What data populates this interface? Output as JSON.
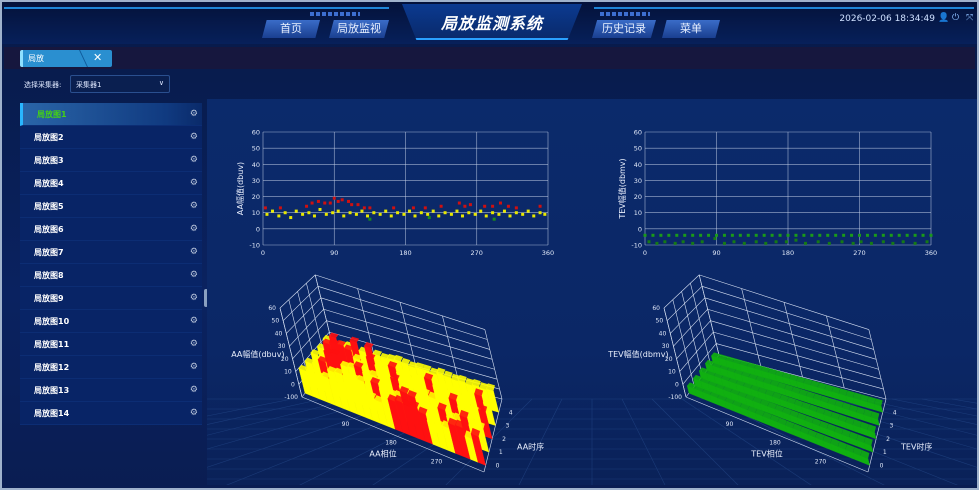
{
  "header": {
    "title": "局放监测系统",
    "nav": [
      "首页",
      "局放监视",
      "历史记录",
      "菜单"
    ],
    "datetime": "2026-02-06 18:34:49",
    "icons": [
      "user-icon",
      "power-icon",
      "fullscreen-icon"
    ]
  },
  "tabs": [
    {
      "label": "局放",
      "close": "✕"
    }
  ],
  "selector": {
    "label": "选择采集器:",
    "value": "采集器1"
  },
  "sidebar": {
    "items": [
      "局放图1",
      "局放图2",
      "局放图3",
      "局放图4",
      "局放图5",
      "局放图6",
      "局放图7",
      "局放图8",
      "局放图9",
      "局放图10",
      "局放图11",
      "局放图12",
      "局放图13",
      "局放图14"
    ],
    "active": 0
  },
  "chart_data": [
    {
      "type": "scatter",
      "ylabel": "AA幅值(dbuv)",
      "xlim": [
        0,
        360
      ],
      "ylim": [
        -10,
        60
      ],
      "xticks": [
        0,
        90,
        180,
        270,
        360
      ],
      "yticks": [
        -10,
        0,
        10,
        20,
        30,
        40,
        50,
        60
      ],
      "grid": true,
      "series": [
        {
          "color": "#e8e800",
          "points": [
            [
              5,
              9
            ],
            [
              12,
              11
            ],
            [
              20,
              8
            ],
            [
              28,
              10
            ],
            [
              35,
              7
            ],
            [
              42,
              11
            ],
            [
              50,
              9
            ],
            [
              58,
              10
            ],
            [
              65,
              8
            ],
            [
              72,
              12
            ],
            [
              80,
              9
            ],
            [
              88,
              10
            ],
            [
              95,
              11
            ],
            [
              102,
              8
            ],
            [
              110,
              10
            ],
            [
              118,
              9
            ],
            [
              125,
              11
            ],
            [
              132,
              8
            ],
            [
              140,
              10
            ],
            [
              148,
              9
            ],
            [
              155,
              11
            ],
            [
              162,
              8
            ],
            [
              170,
              10
            ],
            [
              178,
              9
            ],
            [
              185,
              11
            ],
            [
              192,
              8
            ],
            [
              200,
              10
            ],
            [
              208,
              9
            ],
            [
              215,
              11
            ],
            [
              222,
              8
            ],
            [
              230,
              10
            ],
            [
              238,
              9
            ],
            [
              245,
              11
            ],
            [
              252,
              8
            ],
            [
              260,
              10
            ],
            [
              268,
              9
            ],
            [
              275,
              11
            ],
            [
              282,
              8
            ],
            [
              290,
              10
            ],
            [
              298,
              9
            ],
            [
              305,
              11
            ],
            [
              312,
              8
            ],
            [
              320,
              10
            ],
            [
              328,
              9
            ],
            [
              335,
              11
            ],
            [
              342,
              8
            ],
            [
              350,
              10
            ],
            [
              356,
              9
            ]
          ]
        },
        {
          "color": "#d01010",
          "points": [
            [
              3,
              13
            ],
            [
              22,
              13
            ],
            [
              55,
              14
            ],
            [
              62,
              16
            ],
            [
              70,
              17
            ],
            [
              78,
              16
            ],
            [
              85,
              16
            ],
            [
              90,
              19
            ],
            [
              95,
              17
            ],
            [
              100,
              18
            ],
            [
              108,
              17
            ],
            [
              112,
              15
            ],
            [
              120,
              15
            ],
            [
              128,
              13
            ],
            [
              135,
              13
            ],
            [
              165,
              13
            ],
            [
              190,
              13
            ],
            [
              205,
              13
            ],
            [
              225,
              14
            ],
            [
              248,
              16
            ],
            [
              255,
              14
            ],
            [
              262,
              15
            ],
            [
              280,
              14
            ],
            [
              290,
              14
            ],
            [
              300,
              16
            ],
            [
              310,
              14
            ],
            [
              320,
              13
            ],
            [
              350,
              14
            ]
          ]
        },
        {
          "color": "#1a8a1a",
          "points": [
            [
              135,
              6
            ],
            [
              210,
              7
            ],
            [
              292,
              6
            ]
          ]
        }
      ]
    },
    {
      "type": "scatter",
      "ylabel": "TEV幅值(dbmv)",
      "xlim": [
        0,
        360
      ],
      "ylim": [
        -10,
        60
      ],
      "xticks": [
        0,
        90,
        180,
        270,
        360
      ],
      "yticks": [
        -10,
        0,
        10,
        20,
        30,
        40,
        50,
        60
      ],
      "grid": true,
      "series": [
        {
          "color": "#1a9a1a",
          "points": [
            [
              0,
              -4
            ],
            [
              10,
              -4
            ],
            [
              20,
              -4
            ],
            [
              30,
              -4
            ],
            [
              40,
              -4
            ],
            [
              50,
              -4
            ],
            [
              60,
              -4
            ],
            [
              70,
              -4
            ],
            [
              80,
              -4
            ],
            [
              90,
              -4
            ],
            [
              100,
              -4
            ],
            [
              110,
              -4
            ],
            [
              120,
              -4
            ],
            [
              130,
              -4
            ],
            [
              140,
              -4
            ],
            [
              150,
              -4
            ],
            [
              160,
              -4
            ],
            [
              170,
              -4
            ],
            [
              180,
              -4
            ],
            [
              190,
              -4
            ],
            [
              200,
              -4
            ],
            [
              210,
              -4
            ],
            [
              220,
              -4
            ],
            [
              230,
              -4
            ],
            [
              240,
              -4
            ],
            [
              250,
              -4
            ],
            [
              260,
              -4
            ],
            [
              270,
              -4
            ],
            [
              280,
              -4
            ],
            [
              290,
              -4
            ],
            [
              300,
              -4
            ],
            [
              310,
              -4
            ],
            [
              320,
              -4
            ],
            [
              330,
              -4
            ],
            [
              340,
              -4
            ],
            [
              350,
              -4
            ],
            [
              360,
              -4
            ]
          ]
        },
        {
          "color": "#157a15",
          "points": [
            [
              5,
              -8
            ],
            [
              15,
              -9
            ],
            [
              25,
              -8
            ],
            [
              38,
              -9
            ],
            [
              48,
              -8
            ],
            [
              60,
              -9
            ],
            [
              72,
              -8
            ],
            [
              88,
              -6
            ],
            [
              100,
              -9
            ],
            [
              112,
              -8
            ],
            [
              125,
              -9
            ],
            [
              140,
              -8
            ],
            [
              152,
              -9
            ],
            [
              165,
              -8
            ],
            [
              178,
              -8
            ],
            [
              190,
              -7
            ],
            [
              202,
              -9
            ],
            [
              218,
              -8
            ],
            [
              232,
              -9
            ],
            [
              248,
              -8
            ],
            [
              262,
              -9
            ],
            [
              272,
              -8
            ],
            [
              285,
              -9
            ],
            [
              300,
              -8
            ],
            [
              312,
              -9
            ],
            [
              325,
              -8
            ],
            [
              340,
              -9
            ],
            [
              355,
              -8
            ]
          ]
        }
      ]
    },
    {
      "type": "bar3d",
      "zlabel": "AA幅值(dbuv)",
      "xlabel": "AA相位",
      "ylabel": "AA时序",
      "zticks": [
        "-100",
        "0",
        "10",
        "20",
        "30",
        "40",
        "50",
        "60"
      ],
      "xticks": [
        90,
        180,
        270
      ],
      "yticks": [
        0,
        1,
        2,
        3,
        4
      ],
      "zlim": [
        -10,
        60
      ],
      "base_color": "#ffff00",
      "peak_color": "#ff1010",
      "peak_threshold": 13,
      "rows": [
        [
          10,
          11,
          10,
          12,
          11,
          10,
          11,
          10,
          12,
          11,
          10,
          11,
          16,
          18,
          17,
          19,
          16,
          11,
          10,
          12,
          17,
          18,
          11,
          16
        ],
        [
          10,
          11,
          16,
          10,
          11,
          10,
          11,
          12,
          10,
          15,
          11,
          10,
          11,
          17,
          16,
          11,
          10,
          11,
          15,
          10,
          11,
          16,
          10,
          11
        ],
        [
          11,
          10,
          17,
          18,
          10,
          11,
          14,
          10,
          11,
          10,
          11,
          15,
          10,
          11,
          10,
          11,
          10,
          11,
          10,
          16,
          11,
          10,
          11,
          15
        ],
        [
          10,
          16,
          18,
          19,
          17,
          11,
          10,
          16,
          11,
          10,
          15,
          11,
          12,
          10,
          11,
          15,
          10,
          11,
          10,
          11,
          10,
          11,
          16,
          10
        ],
        [
          11,
          15,
          10,
          11,
          17,
          10,
          16,
          11,
          10,
          11,
          12,
          11,
          10,
          11,
          11,
          10,
          12,
          11,
          10,
          11,
          10,
          11,
          10,
          11
        ]
      ]
    },
    {
      "type": "bar3d",
      "zlabel": "TEV幅值(dbmv)",
      "xlabel": "TEV相位",
      "ylabel": "TEV时序",
      "zticks": [
        "-100",
        "0",
        "10",
        "20",
        "30",
        "40",
        "50",
        "60"
      ],
      "xticks": [
        90,
        180,
        270
      ],
      "yticks": [
        0,
        1,
        2,
        3,
        4
      ],
      "zlim": [
        -10,
        60
      ],
      "base_color": "#10b010",
      "peak_color": "#10b010",
      "peak_threshold": 99,
      "rows": [
        [
          -4,
          -4,
          -4,
          -4,
          -4,
          -4,
          -4,
          -4,
          -4,
          -4,
          -4,
          -4,
          -4,
          -4,
          -4,
          -4,
          -4,
          -4,
          -4,
          -4,
          -4,
          -4,
          -4,
          -4
        ],
        [
          -4,
          -4,
          -4,
          -4,
          -4,
          -4,
          -4,
          -4,
          -4,
          -4,
          -4,
          -4,
          -4,
          -4,
          -4,
          -4,
          -4,
          -4,
          -4,
          -4,
          -4,
          -4,
          -4,
          -4
        ],
        [
          -4,
          -4,
          -4,
          -4,
          -4,
          -4,
          -4,
          -4,
          -4,
          -4,
          -4,
          -4,
          -4,
          -4,
          -4,
          -4,
          -4,
          -4,
          -4,
          -4,
          -4,
          -4,
          -4,
          -4
        ],
        [
          -4,
          -4,
          -4,
          -4,
          -4,
          -4,
          -4,
          -4,
          -4,
          -4,
          -4,
          -4,
          -4,
          -4,
          -4,
          -4,
          -4,
          -4,
          -4,
          -4,
          -4,
          -4,
          -4,
          -4
        ],
        [
          -4,
          -4,
          -4,
          -4,
          -4,
          -4,
          -4,
          -4,
          -4,
          -4,
          -4,
          -4,
          -4,
          -4,
          -4,
          -4,
          -4,
          -4,
          -4,
          -4,
          -4,
          -4,
          -4,
          -4
        ]
      ]
    }
  ]
}
